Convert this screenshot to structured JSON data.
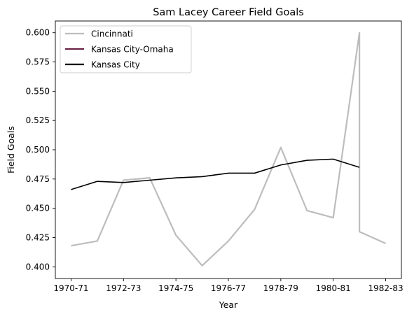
{
  "chart_data": {
    "type": "line",
    "title": "Sam Lacey Career Field Goals",
    "xlabel": "Year",
    "ylabel": "Field Goals",
    "x_range": [
      0,
      12
    ],
    "ylim": [
      0.39,
      0.61
    ],
    "x_ticks": [
      {
        "x": 0,
        "label": "1970-71"
      },
      {
        "x": 2,
        "label": "1972-73"
      },
      {
        "x": 4,
        "label": "1974-75"
      },
      {
        "x": 6,
        "label": "1976-77"
      },
      {
        "x": 8,
        "label": "1978-79"
      },
      {
        "x": 10,
        "label": "1980-81"
      },
      {
        "x": 12,
        "label": "1982-83"
      }
    ],
    "y_ticks": [
      {
        "y": 0.4,
        "label": "0.400"
      },
      {
        "y": 0.425,
        "label": "0.425"
      },
      {
        "y": 0.45,
        "label": "0.450"
      },
      {
        "y": 0.475,
        "label": "0.475"
      },
      {
        "y": 0.5,
        "label": "0.500"
      },
      {
        "y": 0.525,
        "label": "0.525"
      },
      {
        "y": 0.55,
        "label": "0.550"
      },
      {
        "y": 0.575,
        "label": "0.575"
      },
      {
        "y": 0.6,
        "label": "0.600"
      }
    ],
    "grid": false,
    "legend_position": "top-left",
    "series": [
      {
        "name": "Cincinnati",
        "color": "#bdbdbd",
        "points": [
          [
            0,
            0.418
          ],
          [
            1,
            0.422
          ],
          [
            2,
            0.474
          ],
          [
            3,
            0.476
          ],
          [
            4,
            0.427
          ],
          [
            5,
            0.401
          ],
          [
            6,
            0.422
          ],
          [
            7,
            0.449
          ],
          [
            8,
            0.502
          ],
          [
            9,
            0.448
          ],
          [
            10,
            0.442
          ],
          [
            11,
            0.6
          ],
          [
            11,
            0.43
          ],
          [
            12,
            0.42
          ]
        ]
      },
      {
        "name": "Kansas City-Omaha",
        "color": "#6b2346",
        "points": []
      },
      {
        "name": "Kansas City",
        "color": "#000000",
        "points": [
          [
            0,
            0.466
          ],
          [
            1,
            0.473
          ],
          [
            2,
            0.472
          ],
          [
            3,
            0.474
          ],
          [
            4,
            0.476
          ],
          [
            5,
            0.477
          ],
          [
            6,
            0.48
          ],
          [
            7,
            0.48
          ],
          [
            8,
            0.487
          ],
          [
            9,
            0.491
          ],
          [
            10,
            0.492
          ],
          [
            11,
            0.485
          ]
        ]
      }
    ]
  }
}
